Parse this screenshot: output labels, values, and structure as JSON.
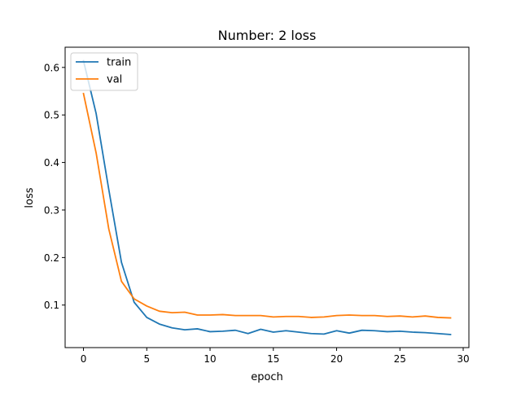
{
  "chart_data": {
    "type": "line",
    "title": "Number: 2 loss",
    "xlabel": "epoch",
    "ylabel": "loss",
    "xlim": [
      -1.45,
      30.45
    ],
    "ylim": [
      0.0105,
      0.6425
    ],
    "x_ticks": [
      0,
      5,
      10,
      15,
      20,
      25,
      30
    ],
    "y_ticks": [
      0.1,
      0.2,
      0.3,
      0.4,
      0.5,
      0.6
    ],
    "grid": false,
    "legend": {
      "position": "top-left"
    },
    "x": [
      0,
      1,
      2,
      3,
      4,
      5,
      6,
      7,
      8,
      9,
      10,
      11,
      12,
      13,
      14,
      15,
      16,
      17,
      18,
      19,
      20,
      21,
      22,
      23,
      24,
      25,
      26,
      27,
      28,
      29
    ],
    "series": [
      {
        "name": "train",
        "color": "#1f77b4",
        "values": [
          0.614,
          0.503,
          0.343,
          0.19,
          0.106,
          0.074,
          0.06,
          0.052,
          0.048,
          0.05,
          0.044,
          0.045,
          0.047,
          0.04,
          0.049,
          0.043,
          0.046,
          0.043,
          0.04,
          0.039,
          0.046,
          0.041,
          0.047,
          0.046,
          0.044,
          0.045,
          0.043,
          0.042,
          0.04,
          0.038
        ]
      },
      {
        "name": "val",
        "color": "#ff7f0e",
        "values": [
          0.545,
          0.42,
          0.26,
          0.15,
          0.113,
          0.098,
          0.087,
          0.084,
          0.085,
          0.079,
          0.079,
          0.08,
          0.078,
          0.078,
          0.078,
          0.075,
          0.076,
          0.076,
          0.074,
          0.075,
          0.078,
          0.079,
          0.078,
          0.078,
          0.076,
          0.077,
          0.075,
          0.077,
          0.074,
          0.073
        ]
      }
    ]
  }
}
